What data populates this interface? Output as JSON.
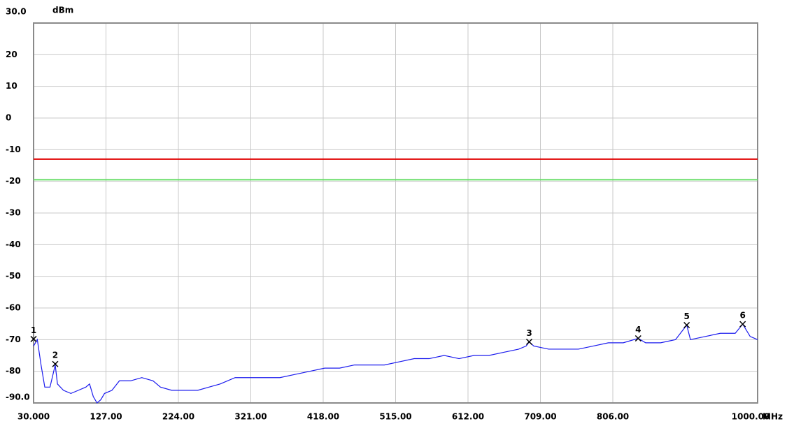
{
  "chart_data": {
    "type": "line",
    "y_unit": "dBm",
    "x_unit": "MHz",
    "xlim": [
      30,
      1000
    ],
    "ylim": [
      -90,
      30
    ],
    "xticks": [
      {
        "value": 30,
        "label": "30.000"
      },
      {
        "value": 127,
        "label": "127.00"
      },
      {
        "value": 224,
        "label": "224.00"
      },
      {
        "value": 321,
        "label": "321.00"
      },
      {
        "value": 418,
        "label": "418.00"
      },
      {
        "value": 515,
        "label": "515.00"
      },
      {
        "value": 612,
        "label": "612.00"
      },
      {
        "value": 709,
        "label": "709.00"
      },
      {
        "value": 806,
        "label": "806.00"
      },
      {
        "value": 1000,
        "label": "1000.00"
      }
    ],
    "yticks": [
      {
        "value": 30,
        "label": "30.0"
      },
      20,
      10,
      0,
      -10,
      -20,
      -30,
      -40,
      -50,
      -60,
      -70,
      -80,
      {
        "value": -90,
        "label": "-90.0"
      }
    ],
    "grid": true,
    "limit_lines": [
      {
        "value": -13,
        "color": "#e00000"
      },
      {
        "value": -19.5,
        "color": "#66dd66"
      }
    ],
    "series": [
      {
        "color": "#1a1aee",
        "x": [
          30,
          35,
          40,
          45,
          52,
          57,
          59,
          62,
          70,
          80,
          90,
          100,
          105,
          110,
          115,
          120,
          125,
          135,
          145,
          160,
          175,
          190,
          200,
          215,
          230,
          250,
          265,
          280,
          300,
          320,
          340,
          360,
          380,
          400,
          420,
          440,
          460,
          480,
          500,
          520,
          540,
          560,
          580,
          600,
          620,
          640,
          660,
          680,
          690,
          694,
          700,
          720,
          740,
          760,
          780,
          800,
          820,
          840,
          850,
          870,
          890,
          905,
          910,
          930,
          950,
          970,
          980,
          990,
          1000
        ],
        "values": [
          -72,
          -70,
          -78,
          -85,
          -85,
          -80,
          -78,
          -84,
          -86,
          -87,
          -86,
          -85,
          -84,
          -88,
          -90,
          -89,
          -87,
          -86,
          -83,
          -83,
          -82,
          -83,
          -85,
          -86,
          -86,
          -86,
          -85,
          -84,
          -82,
          -82,
          -82,
          -82,
          -81,
          -80,
          -79,
          -79,
          -78,
          -78,
          -78,
          -77,
          -76,
          -76,
          -75,
          -76,
          -75,
          -75,
          -74,
          -73,
          -72,
          -70.7,
          -72,
          -73,
          -73,
          -73,
          -72,
          -71,
          -71,
          -69.6,
          -71,
          -71,
          -70,
          -65.4,
          -70,
          -69,
          -68,
          -68,
          -65.1,
          -69,
          -70
        ]
      }
    ],
    "markers": [
      {
        "label": "1",
        "x": 30,
        "y": -69.8
      },
      {
        "label": "2",
        "x": 59,
        "y": -77.7
      },
      {
        "label": "3",
        "x": 694,
        "y": -70.7
      },
      {
        "label": "4",
        "x": 840,
        "y": -69.6
      },
      {
        "label": "5",
        "x": 905,
        "y": -65.4
      },
      {
        "label": "6",
        "x": 980,
        "y": -65.1
      }
    ]
  }
}
